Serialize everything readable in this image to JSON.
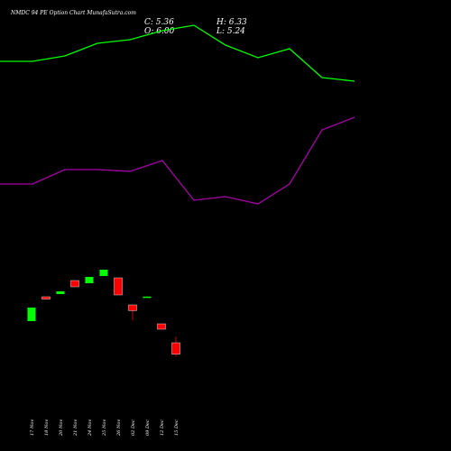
{
  "header": {
    "title": "NMDC 94 PE Option Chart MunafaSutra.com",
    "close_label": "C: 5.36",
    "high_label": "H: 6.33",
    "open_label": "O: 6.00",
    "low_label": "L: 5.24"
  },
  "chart_data": {
    "type": "candlestick",
    "categories": [
      "17 Nov",
      "18 Nov",
      "20 Nov",
      "21 Nov",
      "24 Nov",
      "25 Nov",
      "26 Nov",
      "02 Dec",
      "09 Dec",
      "12 Dec",
      "15 Dec"
    ],
    "candles": [
      {
        "open": 7.2,
        "close": 7.95,
        "high": 7.95,
        "low": 7.2,
        "color": "#00ff00"
      },
      {
        "open": 8.55,
        "close": 8.42,
        "high": 8.55,
        "low": 8.42,
        "color": "#ff0000"
      },
      {
        "open": 8.7,
        "close": 8.85,
        "high": 8.85,
        "low": 8.7,
        "color": "#00ff00"
      },
      {
        "open": 9.45,
        "close": 9.1,
        "high": 9.45,
        "low": 9.1,
        "color": "#ff0000"
      },
      {
        "open": 9.3,
        "close": 9.65,
        "high": 9.65,
        "low": 9.3,
        "color": "#00ff00"
      },
      {
        "open": 9.7,
        "close": 10.05,
        "high": 10.05,
        "low": 9.7,
        "color": "#00ff00"
      },
      {
        "open": 9.6,
        "close": 8.65,
        "high": 9.6,
        "low": 8.65,
        "color": "#ff0000"
      },
      {
        "open": 8.1,
        "close": 7.78,
        "high": 8.1,
        "low": 7.23,
        "color": "#ff0000"
      },
      {
        "open": 8.53,
        "close": 8.56,
        "high": 8.56,
        "low": 8.53,
        "color": "#00ff00"
      },
      {
        "open": 7.05,
        "close": 6.75,
        "high": 7.05,
        "low": 6.75,
        "color": "#ff0000"
      },
      {
        "open": 6.0,
        "close": 5.36,
        "high": 6.33,
        "low": 5.24,
        "color": "#ff0000"
      }
    ],
    "series": [
      {
        "color": "#00ff00",
        "x": [
          0,
          36,
          72,
          108,
          144,
          180,
          215,
          250,
          286,
          321,
          357,
          393
        ],
        "values": [
          21.6,
          21.6,
          21.9,
          22.6,
          22.8,
          23.3,
          23.6,
          22.5,
          21.8,
          22.3,
          20.7,
          20.5
        ]
      },
      {
        "color": "#aa00aa",
        "x": [
          0,
          36,
          72,
          108,
          144,
          180,
          215,
          250,
          286,
          321,
          357,
          393
        ],
        "values": [
          14.8,
          14.8,
          15.6,
          15.6,
          15.5,
          16.1,
          13.9,
          14.1,
          13.7,
          14.8,
          17.8,
          18.5
        ]
      }
    ],
    "ylim": [
      2.5,
      25.0
    ],
    "grid": false,
    "legend": "none"
  }
}
